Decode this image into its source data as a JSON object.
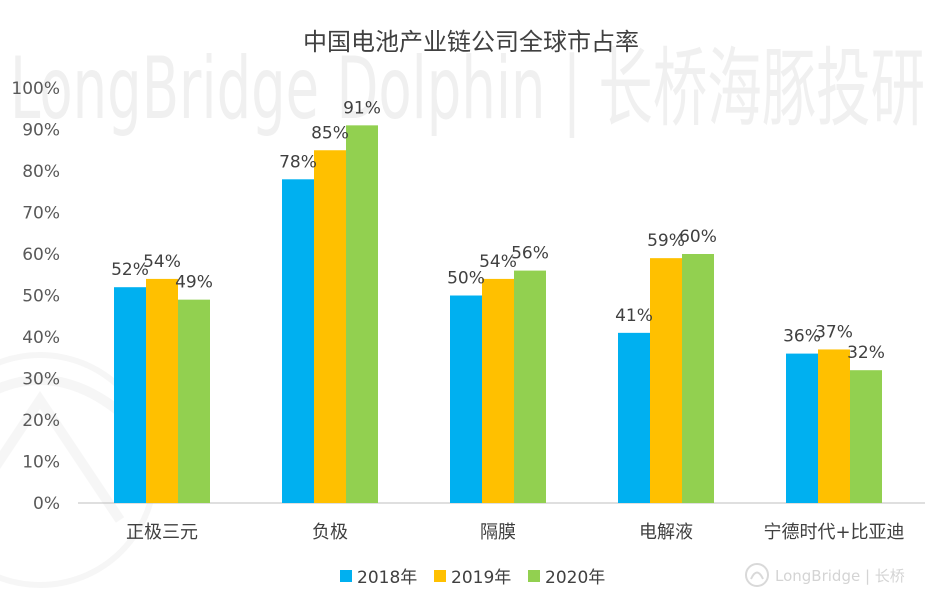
{
  "watermark": {
    "text": "LongBridge Dolphin | 长桥海豚投研",
    "corner": "LongBridge | 长桥"
  },
  "chart_data": {
    "type": "bar",
    "title": "中国电池产业链公司全球市占率",
    "categories": [
      "正极三元",
      "负极",
      "隔膜",
      "电解液",
      "宁德时代+比亚迪"
    ],
    "series": [
      {
        "name": "2018年",
        "values": [
          52,
          78,
          50,
          41,
          36
        ],
        "color": "#00B0F0"
      },
      {
        "name": "2019年",
        "values": [
          54,
          85,
          54,
          59,
          37
        ],
        "color": "#FFC000"
      },
      {
        "name": "2020年",
        "values": [
          49,
          91,
          56,
          60,
          32
        ],
        "color": "#92D050"
      }
    ],
    "data_labels": [
      [
        "52%",
        "78%",
        "50%",
        "41%",
        "36%"
      ],
      [
        "54%",
        "85%",
        "54%",
        "59%",
        "37%"
      ],
      [
        "49%",
        "91%",
        "56%",
        "60%",
        "32%"
      ]
    ],
    "ylim": [
      0,
      100
    ],
    "yticks": [
      0,
      10,
      20,
      30,
      40,
      50,
      60,
      70,
      80,
      90,
      100
    ],
    "ytick_labels": [
      "0%",
      "10%",
      "20%",
      "30%",
      "40%",
      "50%",
      "60%",
      "70%",
      "80%",
      "90%",
      "100%"
    ],
    "xlabel": "",
    "ylabel": "",
    "grid": false,
    "legend_position": "bottom"
  }
}
